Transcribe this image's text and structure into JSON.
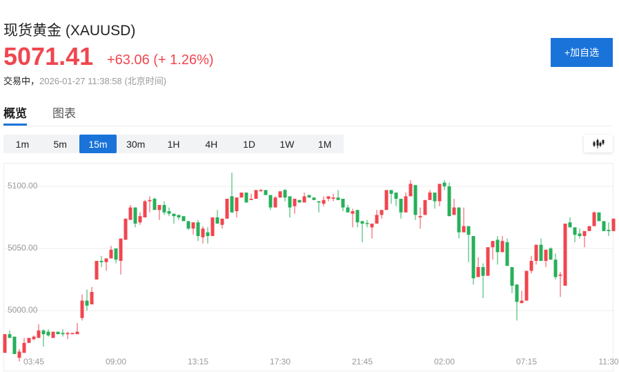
{
  "header": {
    "title": "现货黄金  (XAUUSD)",
    "price": "5071.41",
    "change": "+63.06 (+ 1.26%)",
    "status": "交易中，",
    "timestamp": "2026-01-27 11:38:58  (北京时间)",
    "add_button": "+加自选"
  },
  "tabs": [
    {
      "label": "概览",
      "active": true
    },
    {
      "label": "图表",
      "active": false
    }
  ],
  "intervals": [
    {
      "label": "1m"
    },
    {
      "label": "5m"
    },
    {
      "label": "15m",
      "active": true
    },
    {
      "label": "30m"
    },
    {
      "label": "1H"
    },
    {
      "label": "4H"
    },
    {
      "label": "1D"
    },
    {
      "label": "1W"
    },
    {
      "label": "1M"
    }
  ],
  "chart_type_icon": "candlestick-icon",
  "colors": {
    "up": "#f0464f",
    "down": "#26b05a",
    "accent": "#1a73d9"
  },
  "chart_data": {
    "type": "candlestick",
    "interval": "15m",
    "ylim": [
      4945,
      5118
    ],
    "y_ticks": [
      {
        "value": 5100,
        "label": "5100.00"
      },
      {
        "value": 5050,
        "label": "5050.00"
      },
      {
        "value": 5000,
        "label": "5000.00"
      }
    ],
    "x_ticks": [
      {
        "index": 6,
        "label": "03:45"
      },
      {
        "index": 23,
        "label": "09:00"
      },
      {
        "index": 40,
        "label": "13:15"
      },
      {
        "index": 57,
        "label": "17:30"
      },
      {
        "index": 74,
        "label": "21:45"
      },
      {
        "index": 91,
        "label": "02:00"
      },
      {
        "index": 108,
        "label": "07:15"
      },
      {
        "index": 125,
        "label": "11:30"
      }
    ],
    "ohlc_fields": [
      "open",
      "high",
      "low",
      "close"
    ],
    "candles": [
      [
        4966,
        4981,
        4966,
        4981
      ],
      [
        4981,
        4984,
        4978,
        4978
      ],
      [
        4979,
        4979,
        4965,
        4965
      ],
      [
        4962,
        4969,
        4959,
        4967
      ],
      [
        4966,
        4978,
        4966,
        4974
      ],
      [
        4974,
        4978,
        4974,
        4978
      ],
      [
        4977,
        4980,
        4976,
        4979
      ],
      [
        4978,
        4989,
        4978,
        4984
      ],
      [
        4984,
        4985,
        4971,
        4981
      ],
      [
        4983,
        4985,
        4979,
        4980
      ],
      [
        4978,
        4983,
        4978,
        4983
      ],
      [
        4983,
        4983,
        4981,
        4981
      ],
      [
        4982,
        4985,
        4979,
        4981
      ],
      [
        4981,
        4983,
        4977,
        4982
      ],
      [
        4981,
        4982,
        4981,
        4982
      ],
      [
        4981,
        4990,
        4981,
        4983
      ],
      [
        4994,
        5013,
        4992,
        5008
      ],
      [
        5008,
        5017,
        5000,
        5004
      ],
      [
        5005,
        5019,
        5005,
        5015
      ],
      [
        5025,
        5040,
        5025,
        5040
      ],
      [
        5040,
        5044,
        5035,
        5039
      ],
      [
        5039,
        5042,
        5032,
        5042
      ],
      [
        5042,
        5052,
        5042,
        5049
      ],
      [
        5050,
        5050,
        5038,
        5041
      ],
      [
        5040,
        5058,
        5029,
        5058
      ],
      [
        5057,
        5074,
        5057,
        5074
      ],
      [
        5073,
        5085,
        5073,
        5083
      ],
      [
        5083,
        5083,
        5067,
        5070
      ],
      [
        5071,
        5079,
        5069,
        5076
      ],
      [
        5075,
        5089,
        5075,
        5088
      ],
      [
        5088,
        5092,
        5079,
        5089
      ],
      [
        5090,
        5091,
        5081,
        5081
      ],
      [
        5081,
        5085,
        5073,
        5085
      ],
      [
        5085,
        5088,
        5077,
        5079
      ],
      [
        5080,
        5083,
        5076,
        5078
      ],
      [
        5078,
        5078,
        5070,
        5076
      ],
      [
        5077,
        5077,
        5073,
        5075
      ],
      [
        5076,
        5076,
        5072,
        5072
      ],
      [
        5072,
        5072,
        5065,
        5066
      ],
      [
        5066,
        5071,
        5061,
        5071
      ],
      [
        5071,
        5073,
        5056,
        5060
      ],
      [
        5059,
        5068,
        5054,
        5066
      ],
      [
        5063,
        5067,
        5054,
        5060
      ],
      [
        5060,
        5075,
        5060,
        5075
      ],
      [
        5075,
        5081,
        5070,
        5070
      ],
      [
        5069,
        5074,
        5066,
        5074
      ],
      [
        5074,
        5090,
        5074,
        5090
      ],
      [
        5092,
        5111,
        5079,
        5079
      ],
      [
        5080,
        5091,
        5075,
        5091
      ],
      [
        5091,
        5095,
        5091,
        5095
      ],
      [
        5095,
        5095,
        5087,
        5087
      ],
      [
        5089,
        5094,
        5089,
        5090
      ],
      [
        5090,
        5097,
        5090,
        5097
      ],
      [
        5096,
        5098,
        5096,
        5097
      ],
      [
        5097,
        5097,
        5093,
        5093
      ],
      [
        5093,
        5093,
        5081,
        5083
      ],
      [
        5083,
        5092,
        5083,
        5091
      ],
      [
        5091,
        5096,
        5091,
        5096
      ],
      [
        5097,
        5098,
        5088,
        5091
      ],
      [
        5092,
        5092,
        5075,
        5083
      ],
      [
        5084,
        5090,
        5078,
        5090
      ],
      [
        5089,
        5089,
        5087,
        5087
      ],
      [
        5087,
        5095,
        5087,
        5092
      ],
      [
        5093,
        5093,
        5091,
        5091
      ],
      [
        5091,
        5091,
        5089,
        5089
      ],
      [
        5088,
        5088,
        5079,
        5087
      ],
      [
        5086,
        5092,
        5084,
        5089
      ],
      [
        5090,
        5092,
        5088,
        5092
      ],
      [
        5090,
        5094,
        5088,
        5091
      ],
      [
        5091,
        5097,
        5089,
        5089
      ],
      [
        5090,
        5090,
        5080,
        5083
      ],
      [
        5083,
        5085,
        5079,
        5079
      ],
      [
        5078,
        5082,
        5067,
        5080
      ],
      [
        5081,
        5081,
        5067,
        5071
      ],
      [
        5072,
        5072,
        5055,
        5070
      ],
      [
        5070.5,
        5073,
        5067,
        5070
      ],
      [
        5067,
        5070,
        5058,
        5070
      ],
      [
        5070,
        5081,
        5070,
        5077
      ],
      [
        5077,
        5081,
        5074,
        5081
      ],
      [
        5081,
        5097,
        5081,
        5097
      ],
      [
        5097,
        5097,
        5086,
        5094
      ],
      [
        5095,
        5095,
        5084,
        5090
      ],
      [
        5090,
        5090,
        5074,
        5079
      ],
      [
        5079,
        5095,
        5079,
        5092
      ],
      [
        5092,
        5105,
        5092,
        5102
      ],
      [
        5101,
        5101,
        5073,
        5077
      ],
      [
        5075,
        5083,
        5066,
        5076
      ],
      [
        5077,
        5089,
        5077,
        5089
      ],
      [
        5089,
        5097,
        5089,
        5095
      ],
      [
        5095,
        5095,
        5082,
        5088
      ],
      [
        5088,
        5102,
        5084,
        5102
      ],
      [
        5103,
        5105,
        5097,
        5100
      ],
      [
        5100,
        5103,
        5076,
        5076
      ],
      [
        5077,
        5090,
        5077,
        5083
      ],
      [
        5083,
        5083,
        5058,
        5063
      ],
      [
        5063,
        5083,
        5063,
        5068
      ],
      [
        5068,
        5068,
        5039,
        5061
      ],
      [
        5060,
        5060,
        5021,
        5026
      ],
      [
        5027,
        5043,
        5027,
        5035
      ],
      [
        5035,
        5038,
        5010,
        5028
      ],
      [
        5028,
        5051,
        5028,
        5051
      ],
      [
        5051,
        5056,
        5041,
        5056
      ],
      [
        5057,
        5060,
        5037,
        5047
      ],
      [
        5047,
        5060,
        5047,
        5056
      ],
      [
        5055,
        5058,
        5036,
        5036
      ],
      [
        5035,
        5035,
        5014,
        5020
      ],
      [
        5021,
        5021,
        4992,
        5007
      ],
      [
        5006,
        5016,
        5006,
        5008
      ],
      [
        5008,
        5032,
        5008,
        5032
      ],
      [
        5032,
        5044,
        5030,
        5040
      ],
      [
        5040,
        5053,
        5037,
        5053
      ],
      [
        5053,
        5058,
        5040,
        5040
      ],
      [
        5040,
        5049,
        5035,
        5049
      ],
      [
        5050,
        5051,
        5041,
        5041
      ],
      [
        5041,
        5046,
        5025,
        5027
      ],
      [
        5028,
        5031,
        5011,
        5029
      ],
      [
        5020,
        5070,
        5020,
        5070
      ],
      [
        5071,
        5075,
        5067,
        5067
      ],
      [
        5067,
        5067,
        5055,
        5061
      ],
      [
        5062,
        5066,
        5058,
        5060
      ],
      [
        5060,
        5064,
        5051,
        5064
      ],
      [
        5064,
        5068,
        5064,
        5068
      ],
      [
        5068,
        5080,
        5068,
        5079
      ],
      [
        5079,
        5079,
        5072,
        5072
      ],
      [
        5072,
        5072,
        5064,
        5064
      ],
      [
        5065,
        5071,
        5060,
        5064
      ],
      [
        5064,
        5074,
        5064,
        5074
      ]
    ]
  }
}
